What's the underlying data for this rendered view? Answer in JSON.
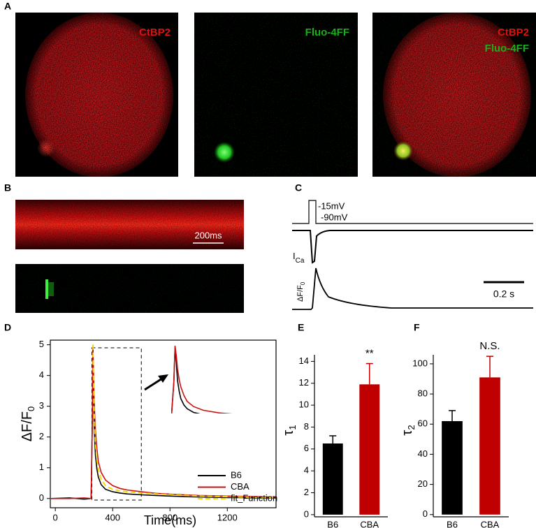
{
  "panel_labels": [
    "A",
    "B",
    "C",
    "D",
    "E",
    "F"
  ],
  "panel_a": {
    "images": [
      {
        "labels": [
          "CtBP2"
        ]
      },
      {
        "labels": [
          "Fluo-4FF"
        ]
      },
      {
        "labels": [
          "CtBP2",
          "Fluo-4FF"
        ]
      }
    ]
  },
  "panel_b": {
    "scale_bar": "200ms"
  },
  "panel_c": {
    "voltage_labels": [
      "-15mV",
      "-90mV"
    ],
    "current_label": {
      "main": "I",
      "sub": "Ca"
    },
    "fluorescence_label": {
      "main": "ΔF/F",
      "sub": "0"
    },
    "scale_bar": "0.2 s"
  },
  "chart_data": [
    {
      "type": "line",
      "x_label": "Time(ms)",
      "y_label": {
        "main": "ΔF/F",
        "sub": "0"
      },
      "xlim": [
        -35,
        1540
      ],
      "ylim": [
        -0.3,
        5.15
      ],
      "xticks": [
        0,
        400,
        800,
        1200
      ],
      "yticks": [
        0,
        1,
        2,
        3,
        4,
        5
      ],
      "x": [
        -30,
        100,
        200,
        250,
        258,
        262,
        266,
        270,
        275,
        280,
        290,
        300,
        320,
        350,
        400,
        450,
        500,
        600,
        700,
        800,
        900,
        1000,
        1100,
        1200,
        1300,
        1400,
        1500,
        1540
      ],
      "series": [
        {
          "name": "B6",
          "color": "#000000",
          "values": [
            0,
            0.02,
            -0.02,
            0,
            2.5,
            4.9,
            3.8,
            2.6,
            1.9,
            1.4,
            0.95,
            0.7,
            0.45,
            0.3,
            0.22,
            0.18,
            0.15,
            0.12,
            0.1,
            0.08,
            0.06,
            0.05,
            0.04,
            0.03,
            0.03,
            0.02,
            0.02,
            0.02
          ]
        },
        {
          "name": "CBA",
          "color": "#cc1111",
          "values": [
            0,
            0,
            0.02,
            0,
            2.4,
            5.0,
            4.3,
            3.4,
            2.7,
            2.2,
            1.6,
            1.2,
            0.85,
            0.6,
            0.42,
            0.33,
            0.28,
            0.22,
            0.17,
            0.14,
            0.12,
            0.1,
            0.09,
            0.08,
            0.07,
            0.06,
            0.05,
            0.05
          ]
        },
        {
          "name": "fit_Function",
          "color": "#f5d90a",
          "dashed": true,
          "values": [
            null,
            null,
            null,
            null,
            null,
            5.0,
            4.0,
            3.0,
            2.3,
            1.8,
            1.25,
            0.95,
            0.62,
            0.42,
            0.3,
            0.25,
            0.22,
            0.18,
            0.15,
            0.12,
            0.1,
            0.08,
            0.07,
            0.06,
            0.05,
            0.04,
            0.035,
            0.03
          ]
        }
      ]
    },
    {
      "type": "bar",
      "y_label": {
        "main": "τ",
        "sub": "1"
      },
      "categories": [
        "B6",
        "CBA"
      ],
      "values": [
        6.5,
        11.9
      ],
      "errors": [
        0.7,
        1.9
      ],
      "colors": [
        "#000000",
        "#c00000"
      ],
      "ylim": [
        -0.2,
        14.6
      ],
      "yticks": [
        0,
        2,
        4,
        6,
        8,
        10,
        12,
        14
      ],
      "annotations": [
        {
          "text": "**",
          "category": 1
        }
      ]
    },
    {
      "type": "bar",
      "y_label": {
        "main": "τ",
        "sub": "2"
      },
      "categories": [
        "B6",
        "CBA"
      ],
      "values": [
        62,
        91
      ],
      "errors": [
        7,
        14
      ],
      "colors": [
        "#000000",
        "#c00000"
      ],
      "ylim": [
        -1.5,
        106
      ],
      "yticks": [
        0,
        20,
        40,
        60,
        80,
        100
      ],
      "annotations": [
        {
          "text": "N.S.",
          "category": 1
        }
      ]
    }
  ]
}
